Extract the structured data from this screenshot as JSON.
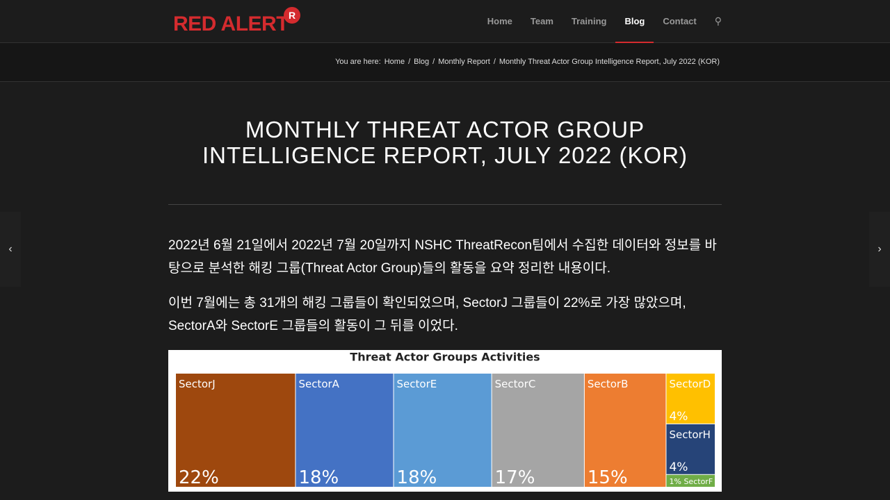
{
  "header": {
    "logo": "RED ALERT",
    "logo_badge": "R",
    "nav": [
      "Home",
      "Team",
      "Training",
      "Blog",
      "Contact"
    ],
    "active": "Blog"
  },
  "breadcrumb": {
    "label": "You are here:",
    "separator": "/",
    "items": [
      "Home",
      "Blog",
      "Monthly Report",
      "Monthly Threat Actor Group Intelligence Report, July 2022 (KOR)"
    ]
  },
  "article": {
    "title_lines": [
      "MONTHLY THREAT ACTOR GROUP",
      "INTELLIGENCE REPORT, JULY 2022 (KOR)"
    ],
    "paragraphs": [
      "2022년 6월 21일에서 2022년 7월 20일까지 NSHC ThreatRecon팀에서 수집한 데이터와 정보를 바탕으로 분석한 해킹 그룹(Threat Actor Group)들의 활동을 요약 정리한 내용이다.",
      "이번 7월에는 총 31개의 해킹 그룹들이 확인되었으며, SectorJ 그룹들이 22%로 가장 많았으며, SectorA와 SectorE 그룹들의 활동이 그 뒤를 이었다."
    ]
  },
  "chart_data": {
    "type": "treemap",
    "title": "Threat Actor Groups Activities",
    "categories": [
      "SectorJ",
      "SectorA",
      "SectorE",
      "SectorC",
      "SectorB",
      "SectorD",
      "SectorH",
      "SectorF"
    ],
    "values": [
      22,
      18,
      18,
      17,
      15,
      4,
      4,
      1
    ],
    "value_labels": [
      "22%",
      "18%",
      "18%",
      "17%",
      "15%",
      "4%",
      "4%",
      "1%"
    ],
    "colors": [
      "#9e480e",
      "#4472c4",
      "#5b9bd5",
      "#a5a5a5",
      "#ed7d31",
      "#ffc000",
      "#264478",
      "#70ad47"
    ]
  }
}
